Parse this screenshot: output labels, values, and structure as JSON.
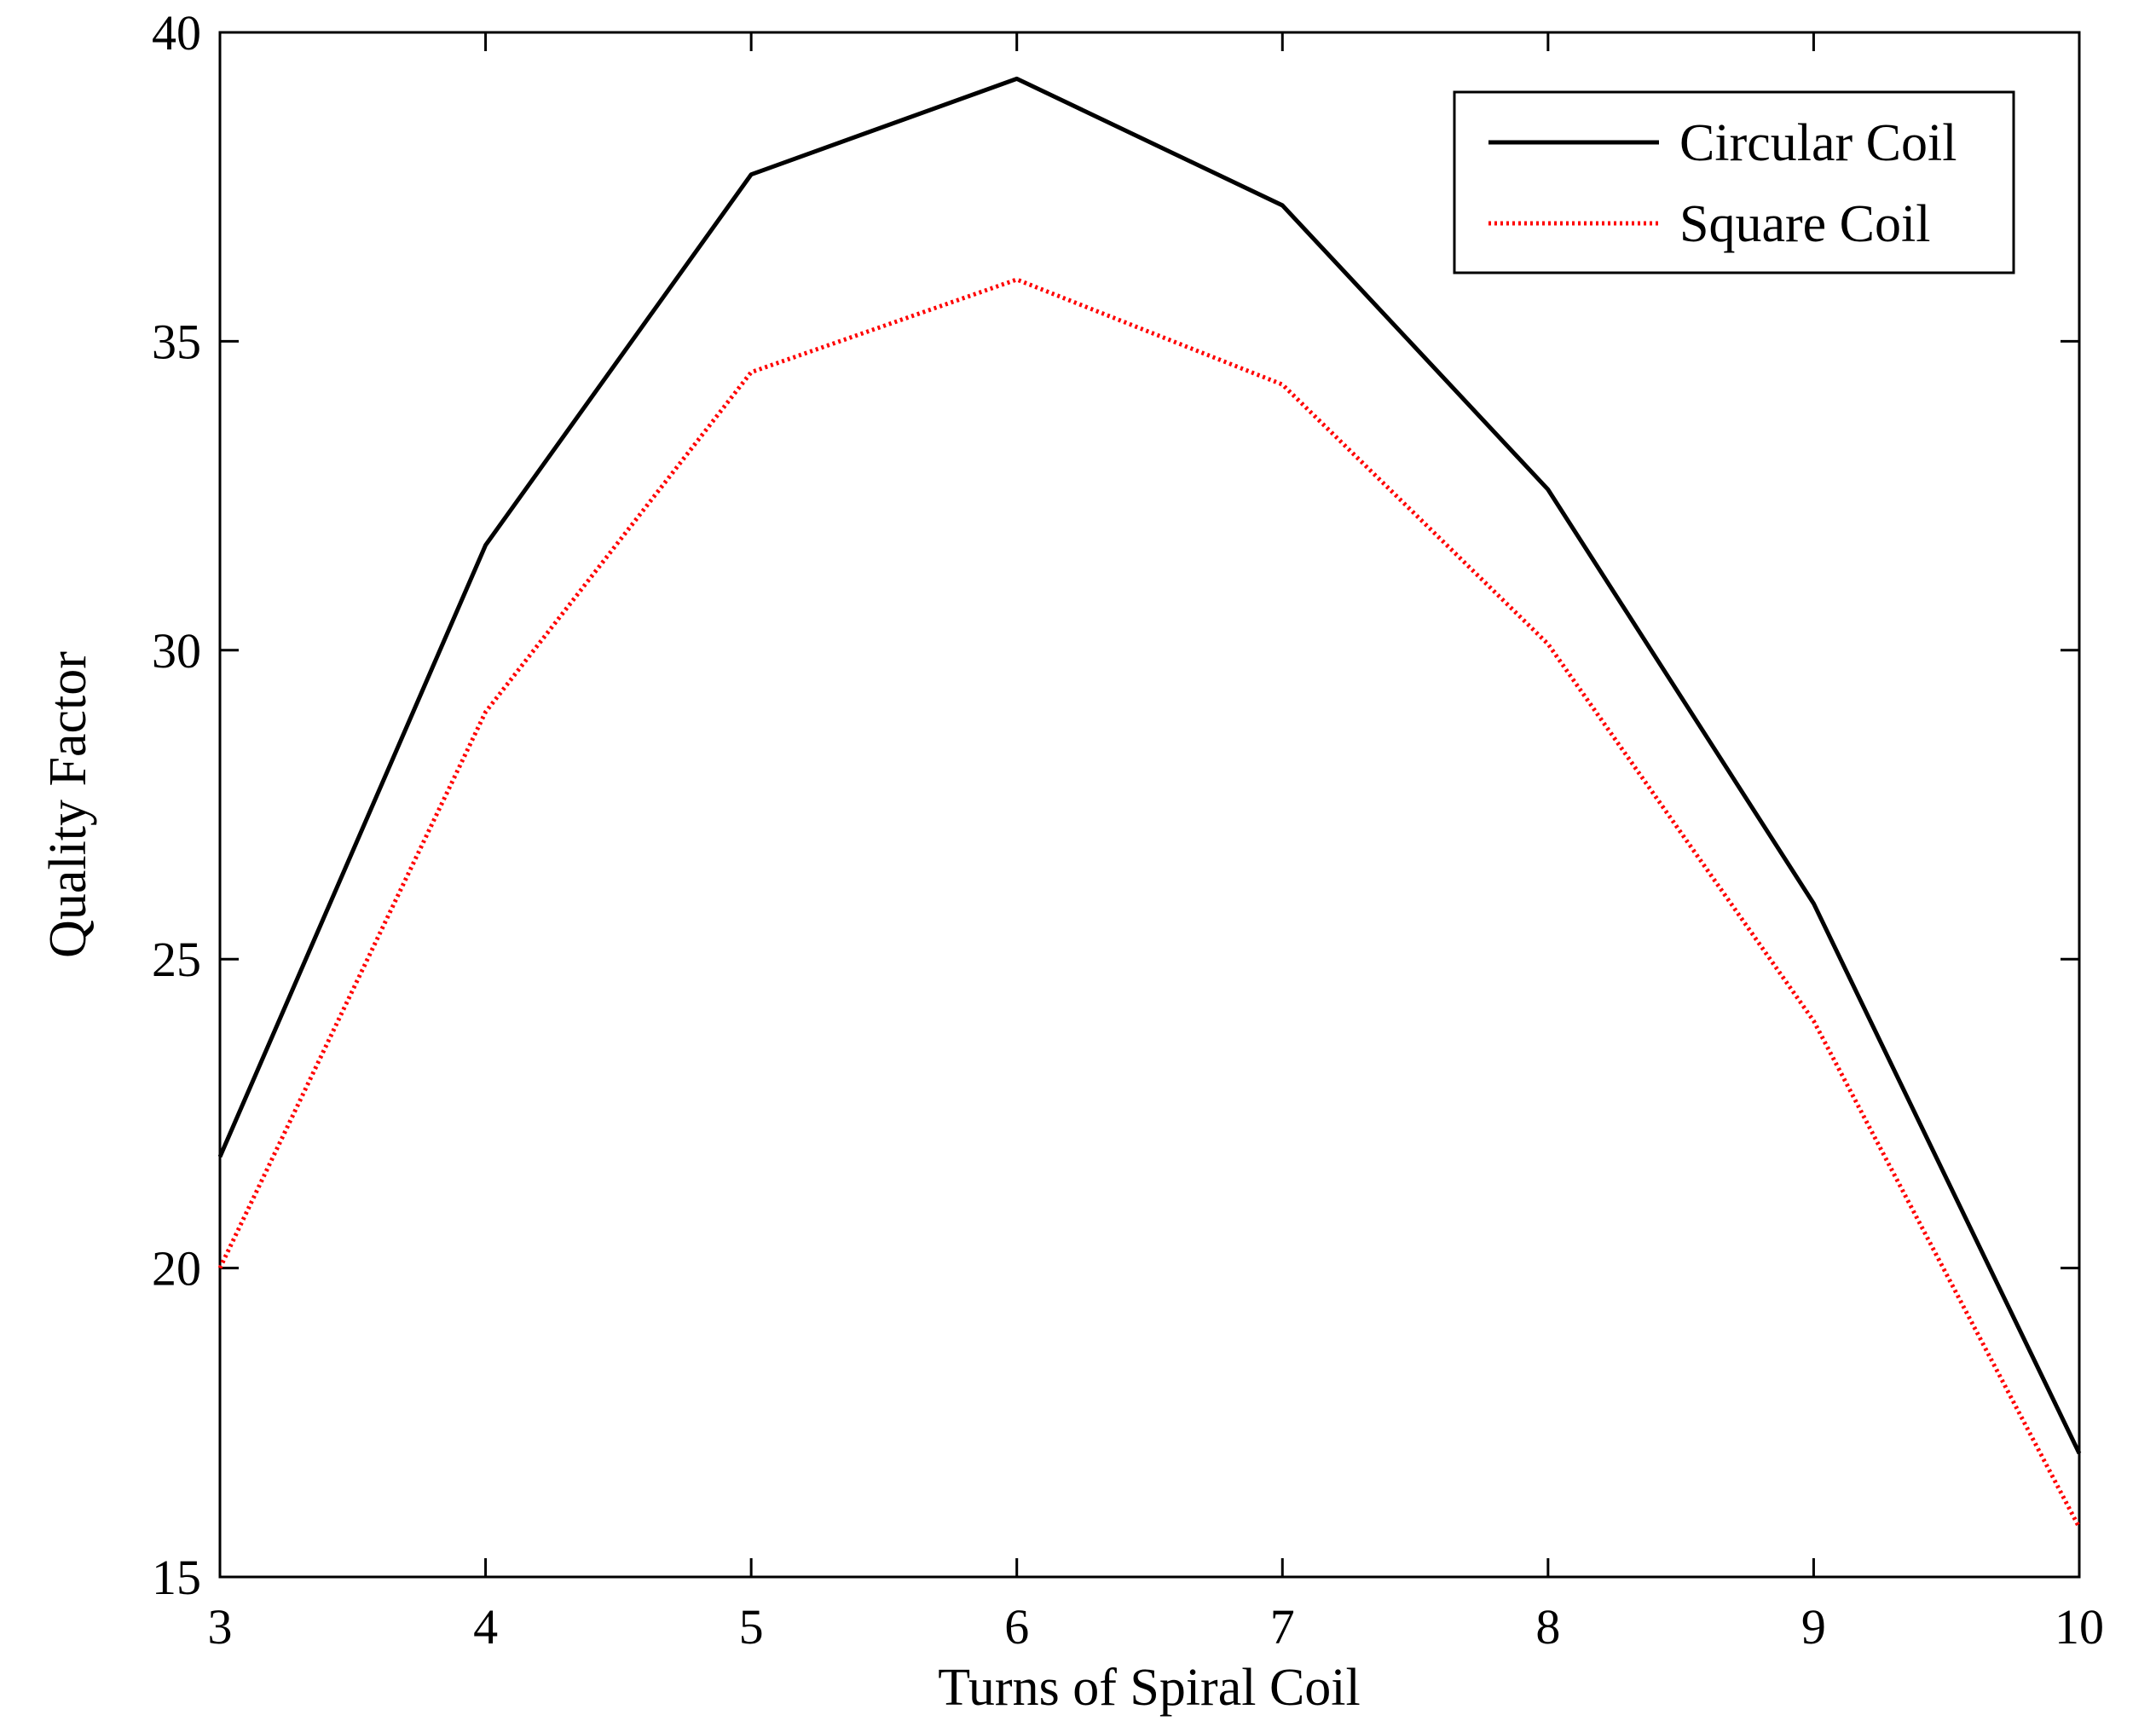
{
  "chart_data": {
    "type": "line",
    "title": "",
    "xlabel": "Turns of Spiral Coil",
    "ylabel": "Quality Factor",
    "xlim": [
      3,
      10
    ],
    "ylim": [
      15,
      40
    ],
    "xticks": [
      3,
      4,
      5,
      6,
      7,
      8,
      9,
      10
    ],
    "yticks": [
      15,
      20,
      25,
      30,
      35,
      40
    ],
    "x": [
      3,
      4,
      5,
      6,
      7,
      8,
      9,
      10
    ],
    "series": [
      {
        "name": "Circular Coil",
        "values": [
          21.8,
          31.7,
          37.7,
          39.25,
          37.2,
          32.6,
          25.9,
          17.0
        ],
        "color": "#000000",
        "style": "solid"
      },
      {
        "name": "Square Coil",
        "values": [
          20.0,
          29.0,
          34.5,
          36.0,
          34.3,
          30.1,
          24.0,
          15.8
        ],
        "color": "#ff0000",
        "style": "dotted"
      }
    ],
    "legend": "top-right",
    "grid": false
  }
}
